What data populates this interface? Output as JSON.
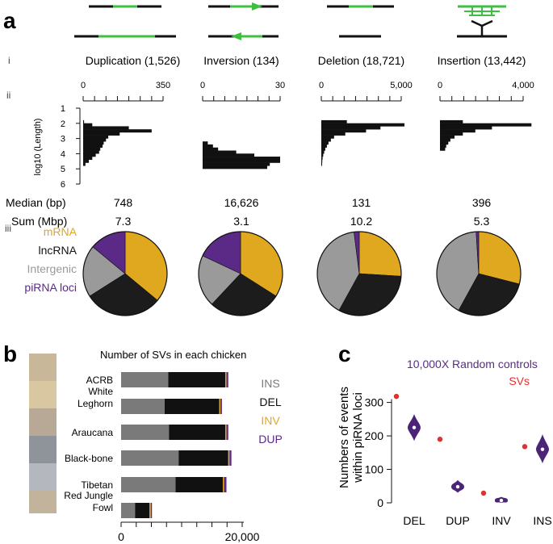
{
  "colors": {
    "green": "#3fbf3f",
    "bar": "#111111",
    "mrna": "#e0a81e",
    "lncrna": "#1c1c1c",
    "intergenic": "#9a9a9a",
    "pirna": "#5b2a86",
    "ins": "#7a7a7a",
    "del": "#111111",
    "inv": "#e0a81e",
    "dup": "#5b2a86",
    "sv_dot": "#e03030",
    "violin": "#4b2478"
  },
  "panel_a": {
    "label": "a",
    "row_labels": {
      "i": "i",
      "ii": "ii",
      "iii": "iii"
    },
    "row_headers": {
      "median": "Median (bp)",
      "sum": "Sum (Mbp)"
    },
    "y_axis_label": "log10 (Length)",
    "y_ticks": [
      "1",
      "2",
      "3",
      "4",
      "5",
      "6"
    ],
    "legend": [
      {
        "label": "mRNA",
        "color": "#e0a81e"
      },
      {
        "label": "lncRNA",
        "color": "#111111"
      },
      {
        "label": "Intergenic",
        "color": "#9a9a9a"
      },
      {
        "label": "piRNA loci",
        "color": "#5b2a86"
      }
    ],
    "types": [
      {
        "title": "Duplication (1,526)",
        "icon": "duplication-icon",
        "axis_ticks": [
          "0",
          "350"
        ],
        "xmax": 350,
        "hist": [
          {
            "log10": 1.9,
            "count": 4
          },
          {
            "log10": 2.1,
            "count": 40
          },
          {
            "log10": 2.3,
            "count": 200
          },
          {
            "log10": 2.5,
            "count": 300
          },
          {
            "log10": 2.7,
            "count": 160
          },
          {
            "log10": 2.9,
            "count": 110
          },
          {
            "log10": 3.1,
            "count": 100
          },
          {
            "log10": 3.3,
            "count": 90
          },
          {
            "log10": 3.5,
            "count": 85
          },
          {
            "log10": 3.7,
            "count": 75
          },
          {
            "log10": 3.9,
            "count": 70
          },
          {
            "log10": 4.1,
            "count": 55
          },
          {
            "log10": 4.3,
            "count": 40
          },
          {
            "log10": 4.5,
            "count": 25
          },
          {
            "log10": 4.7,
            "count": 10
          }
        ],
        "median": "748",
        "sum": "7.3",
        "pie": {
          "mrna": 0.36,
          "lncrna": 0.3,
          "intergenic": 0.2,
          "pirna": 0.14
        }
      },
      {
        "title": "Inversion (134)",
        "icon": "inversion-icon",
        "axis_ticks": [
          "0",
          "30"
        ],
        "xmax": 30,
        "hist": [
          {
            "log10": 3.3,
            "count": 2
          },
          {
            "log10": 3.5,
            "count": 4
          },
          {
            "log10": 3.7,
            "count": 6
          },
          {
            "log10": 3.9,
            "count": 13
          },
          {
            "log10": 4.1,
            "count": 20
          },
          {
            "log10": 4.3,
            "count": 30
          },
          {
            "log10": 4.5,
            "count": 30
          },
          {
            "log10": 4.7,
            "count": 26
          },
          {
            "log10": 4.9,
            "count": 25
          }
        ],
        "median": "16,626",
        "sum": "3.1",
        "pie": {
          "mrna": 0.34,
          "lncrna": 0.28,
          "intergenic": 0.2,
          "pirna": 0.18
        }
      },
      {
        "title": "Deletion (18,721)",
        "icon": "deletion-icon",
        "axis_ticks": [
          "0",
          "5,000"
        ],
        "xmax": 5000,
        "hist": [
          {
            "log10": 1.9,
            "count": 1600
          },
          {
            "log10": 2.1,
            "count": 5200
          },
          {
            "log10": 2.3,
            "count": 3700
          },
          {
            "log10": 2.5,
            "count": 2800
          },
          {
            "log10": 2.7,
            "count": 1500
          },
          {
            "log10": 2.9,
            "count": 800
          },
          {
            "log10": 3.1,
            "count": 600
          },
          {
            "log10": 3.3,
            "count": 450
          },
          {
            "log10": 3.5,
            "count": 350
          },
          {
            "log10": 3.7,
            "count": 250
          },
          {
            "log10": 3.9,
            "count": 180
          },
          {
            "log10": 4.1,
            "count": 120
          },
          {
            "log10": 4.3,
            "count": 80
          },
          {
            "log10": 4.5,
            "count": 60
          },
          {
            "log10": 4.7,
            "count": 40
          }
        ],
        "median": "131",
        "sum": "10.2",
        "pie": {
          "mrna": 0.26,
          "lncrna": 0.32,
          "intergenic": 0.4,
          "pirna": 0.02
        }
      },
      {
        "title": "Insertion (13,442)",
        "icon": "insertion-icon",
        "axis_ticks": [
          "0",
          "4,000"
        ],
        "xmax": 4000,
        "hist": [
          {
            "log10": 1.9,
            "count": 1100
          },
          {
            "log10": 2.1,
            "count": 4400
          },
          {
            "log10": 2.3,
            "count": 2500
          },
          {
            "log10": 2.5,
            "count": 1700
          },
          {
            "log10": 2.7,
            "count": 1100
          },
          {
            "log10": 2.9,
            "count": 700
          },
          {
            "log10": 3.1,
            "count": 500
          },
          {
            "log10": 3.3,
            "count": 400
          },
          {
            "log10": 3.5,
            "count": 300
          },
          {
            "log10": 3.7,
            "count": 250
          }
        ],
        "median": "396",
        "sum": "5.3",
        "pie": {
          "mrna": 0.29,
          "lncrna": 0.29,
          "intergenic": 0.41,
          "pirna": 0.01
        }
      }
    ]
  },
  "panel_b": {
    "label": "b",
    "title": "Number of SVs in each chicken",
    "x_ticks": [
      "0",
      "20,000"
    ],
    "xmax": 20000,
    "legend": [
      {
        "label": "INS",
        "color": "#7a7a7a"
      },
      {
        "label": "DEL",
        "color": "#111111"
      },
      {
        "label": "INV",
        "color": "#e0a81e"
      },
      {
        "label": "DUP",
        "color": "#5b2a86"
      }
    ],
    "breeds": [
      {
        "name": [
          "ACRB"
        ],
        "ins": 7800,
        "del": 9400,
        "inv": 120,
        "dup": 300
      },
      {
        "name": [
          "White",
          "Leghorn"
        ],
        "ins": 7200,
        "del": 9000,
        "inv": 100,
        "dup": 250
      },
      {
        "name": [
          "Araucana"
        ],
        "ins": 7900,
        "del": 9300,
        "inv": 120,
        "dup": 300
      },
      {
        "name": [
          "Black-bone"
        ],
        "ins": 9500,
        "del": 8200,
        "inv": 120,
        "dup": 320
      },
      {
        "name": [
          "Tibetan"
        ],
        "ins": 9000,
        "del": 7800,
        "inv": 150,
        "dup": 400
      },
      {
        "name": [
          "Red Jungle",
          "Fowl"
        ],
        "ins": 2300,
        "del": 2400,
        "inv": 100,
        "dup": 60
      }
    ]
  },
  "panel_c": {
    "label": "c",
    "ylabel_lines": [
      "Numbers of events",
      "within piRNA loci"
    ],
    "legend": [
      {
        "label": "10,000X Random controls",
        "color": "#5b2a86"
      },
      {
        "label": "SVs",
        "color": "#e03030"
      }
    ],
    "y_ticks": [
      0,
      100,
      200,
      300
    ],
    "ylim": [
      0,
      340
    ],
    "categories": [
      "DEL",
      "DUP",
      "INV",
      "INS"
    ],
    "sv_values": [
      318,
      190,
      29,
      168
    ],
    "control_medians": [
      225,
      48,
      7,
      160
    ],
    "control_ranges": [
      [
        185,
        265
      ],
      [
        30,
        68
      ],
      [
        0,
        18
      ],
      [
        118,
        205
      ]
    ]
  }
}
